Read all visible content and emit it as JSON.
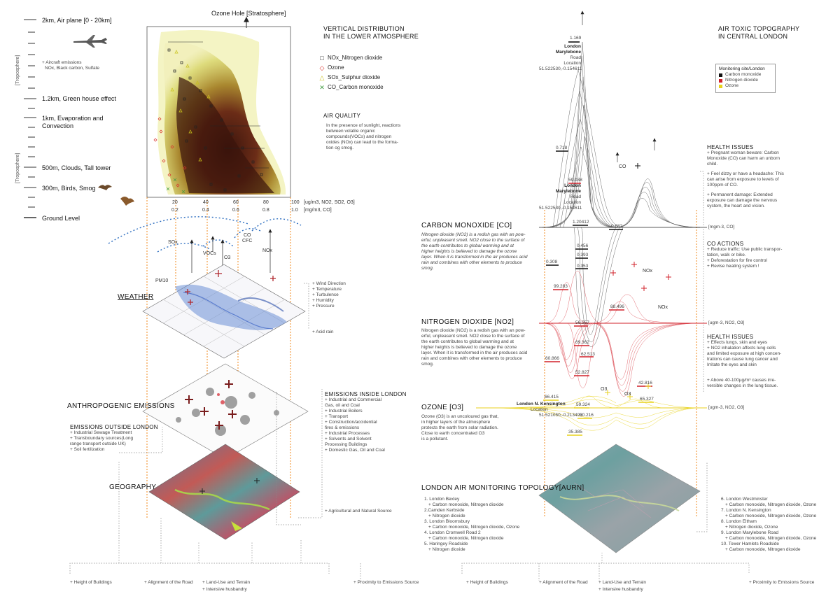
{
  "left": {
    "ozone_hole": "Ozone Hole [Stratosphere]",
    "levels": [
      {
        "label": "2km, Air plane [0 - 20km]"
      },
      {
        "label": "1.2km, Green house effect"
      },
      {
        "label": "1km, Evaporation and"
      },
      {
        "label": "Convection"
      },
      {
        "label": "500m, Clouds, Tall tower"
      },
      {
        "label": "300m, Birds, Smog"
      },
      {
        "label": "Ground Level"
      }
    ],
    "aircraft_note": [
      "+ Aircraft emissions",
      "NOx, Black carbon, Sulfate"
    ],
    "troposphere_1": "[Troposphere]",
    "troposphere_2": "[Troposphere]",
    "chart_title": [
      "VERTICAL DISTRIBUTION",
      "IN THE LOWER ATMOSPHERE"
    ],
    "legend": [
      {
        "symbol": "□",
        "label": "NOx_Nitrogen dioxide",
        "color": "#222222"
      },
      {
        "symbol": "◇",
        "label": "Ozone",
        "color": "#d9302a"
      },
      {
        "symbol": "△",
        "label": "SOx_Sulphur dioxide",
        "color": "#c9c21a"
      },
      {
        "symbol": "✕",
        "label": "CO_Carbon monoxide",
        "color": "#3f9b3f"
      }
    ],
    "air_quality_title": "AIR QUALITY",
    "air_quality_text": [
      "In the presence of sunlight, reactions",
      "between volatile organic",
      "compounds(VOCs) and nitrogen",
      "oxides (NOx) can lead to the forma-",
      "tion og smog."
    ],
    "axis_ticks_top": [
      "20",
      "40",
      "60",
      "80",
      "100"
    ],
    "axis_ticks_bottom": [
      "0.2",
      "0.4",
      "0.6",
      "0.8",
      "1.0"
    ],
    "axis_unit_top": "[ug/m3, NO2, SO2, O3]",
    "axis_unit_bottom": "[mg/m3, CO]",
    "gas_labels": {
      "sox": "SOx",
      "vocs": "VOCs",
      "co": "CO",
      "cfc": "CFC",
      "o3": "O3",
      "nox": "NOx",
      "pm10": "PM10"
    },
    "weather": "WEATHER",
    "weather_list": [
      "+ Wind Direction",
      "+ Temperature",
      "+ Turbulence",
      "+ Humidity",
      "+ Pressure"
    ],
    "acid_rain": "+ Acid rain",
    "anthro": "ANTHROPOGENIC EMISSIONS",
    "emis_inside_title": "EMISSIONS INSIDE LONDON",
    "emis_inside": [
      "+ Industrial and Commercial",
      "Gas, oil and Coal",
      "+ Industrial Boilers",
      "+ Transport",
      "+ Construction/accidential",
      "fires & emissions",
      "+ Industrial Processes",
      "+ Solvents and Solvent",
      "Processing Buildings",
      "+ Domestic Gas, Oil and Coal"
    ],
    "emis_outside_title": "EMISSIONS OUTSIDE LONDON",
    "emis_outside": [
      "+ Industrial Sewage Treatment",
      "+ Transboundary sources(Long",
      "range transport outside UK)",
      "+ Soil fertilization"
    ],
    "geography": "GEOGRAPHY",
    "agri": "+ Agricultural and Natural Source",
    "bottom": {
      "b1": "+ Height of Buildings",
      "b2": "+ Alignment of the Road",
      "b3": "+ Land-Use and Terrain",
      "b4": "+ Intensive husbandry",
      "b5": "+ Proximity to Emissions Source"
    }
  },
  "right": {
    "title": [
      "AIR TOXIC TOPOGRAPHY",
      "IN CENTRAL LONDON"
    ],
    "monitor_legend": {
      "title": "Monitoring site/London",
      "items": [
        {
          "label": "Carbon monoxide",
          "color": "#111111"
        },
        {
          "label": "Nitrogen dioxide",
          "color": "#d2202a"
        },
        {
          "label": "Ozone",
          "color": "#e8d21c"
        }
      ]
    },
    "peak_values": {
      "v1": "1.169",
      "v2": "0.718",
      "v3": "59.038",
      "v4": "1.20412",
      "v5": "0.682",
      "v6": "0.456",
      "v7": "0.393",
      "v8": "0.353",
      "v9": "0.308",
      "v10": "99.283",
      "v11": "88.496",
      "v12": "56.557",
      "v13": "69.362",
      "v14": "62.513",
      "v15": "60.866",
      "v16": "52.827",
      "v17": "42.816",
      "v18": "66.415",
      "v19": "59.324",
      "v20": "50.216",
      "v21": "65.327",
      "v22": "35.385"
    },
    "site1": [
      "London Marylebone",
      "Road",
      "Location",
      "51.522530,-0.154611"
    ],
    "site2": [
      "London Marylebone",
      "Road",
      "Location",
      "51.522530,-0.154611"
    ],
    "site3": [
      "London N. Kensington",
      "Location",
      "51.521050,-0.213492"
    ],
    "co_label": "CO",
    "nox_label": "NOx",
    "nox_label2": "NOx",
    "o3_label": "O3",
    "o3_label2": "O3",
    "co_heading": "CARBON MONOXIDE [CO]",
    "co_text": [
      "Nitrogen dioxide (NO2) is a redish gas with an pow-",
      "erful, unpleasent smell. NO2 close to the surface of",
      "the earth contributes to global warming and at",
      "higher heights is believed to damage the ozone",
      "layer. When it is transformed in the air produces acid",
      "rain and combines with other elements to produce",
      "smog."
    ],
    "co_unit": "[mgm-3, CO]",
    "no2_heading": "NITROGEN DIOXIDE [NO2]",
    "no2_text": [
      "Nitrogen dioxide (NO2) is a redish gas with an pow-",
      "erful, unpleasent smell. NO2 close to the surface of",
      "the earth contributes to global warming and at",
      "higher heights is believed to damage the ozone",
      "layer. When it is transformed in the air produces acid",
      "rain and combines with other elements to produce",
      "smog."
    ],
    "no2_unit": "[ugm-3, NO2, O3]",
    "o3_heading": "OZONE [O3]",
    "o3_text": [
      "Ozone (O3) is an uncoloured gas that,",
      "in higher layers of the atmosphere",
      "protects the earth from solar radiation.",
      "Close to earth concentrated O3",
      "is a pollutant."
    ],
    "o3_unit": "[ugm-3, NO2, O3]",
    "health1_title": "HEALTH ISSUES",
    "health1": [
      "+ Pregnant woman beware: Carbon",
      "Monoxide (CO) can harm an unborn",
      "child.",
      "",
      "+ Feel dizzy or have a headache: This",
      "can arise from exposure to levels of",
      "100ppm of CO.",
      "",
      "+ Permanent damage: Extended",
      "exposure can damage the nervous",
      "system, the heart and vision."
    ],
    "co_actions_title": "CO ACTIONS",
    "co_actions": [
      "+ Reduce traffic: Use public transpor-",
      "tation, walk or bike.",
      "+ Deforestation for fire control",
      "+ Revise heating system !"
    ],
    "health2_title": "HEALTH ISSUES",
    "health2": [
      "+ Effects lungs, skin and eyes",
      "+ NO2 inhalation affects lung cells",
      "and limited exposure at high concen-",
      "trations can cause lung cancer and",
      "Irritate the eyes and skin",
      "",
      "",
      "+ Above 40-100µg/m³ causes irre-",
      "versible changes in the lung tissue."
    ],
    "aurn_heading": "LONDON AIR MONITORING TOPOLOGY[AURN]",
    "aurn_left": [
      "1. London Bexley",
      "+ Carbon monoxide, Nitrogen dioxide",
      "2.Camden Kerbside",
      "+ Nitrogen dioxide",
      "3. London Bloomsbury",
      "+ Carbon monoxide, Nitrogen dioxide, Ozone",
      "4. London Cromwell Road 2",
      "+ Carbon monoxide, Nitrogen dioxide",
      "5. Haringey Roadside",
      "+ Nitrogen dioxide"
    ],
    "aurn_right": [
      "6. London Westminster",
      "+ Carbon monoxide, Nitrogen dioxide, Ozone",
      "7. London N. Kensington",
      "+ Carbon monoxide, Nitrogen dioxide, Ozone",
      "8. London Eltham",
      "+ Nitrogen dioxide, Ozone",
      "9. London Marylebone Road",
      "+ Carbon monoxide, Nitrogen dioxide, Ozone",
      "10. Tower Hamlets Roadside",
      "+ Carbon monoxide, Nitrogen dioxide"
    ],
    "bottom": {
      "b1": "+ Height of Buildings",
      "b2": "+ Alignment of the Road",
      "b3": "+ Land-Use and Terrain",
      "b4": "+ Intensive husbandry",
      "b5": "+ Proximity to Emissions Source"
    }
  },
  "colors": {
    "co": "#111111",
    "no2": "#d2202a",
    "o3": "#e8d21c",
    "orange_dash": "#f08a1c",
    "blue_dash": "#2f6fc0"
  }
}
